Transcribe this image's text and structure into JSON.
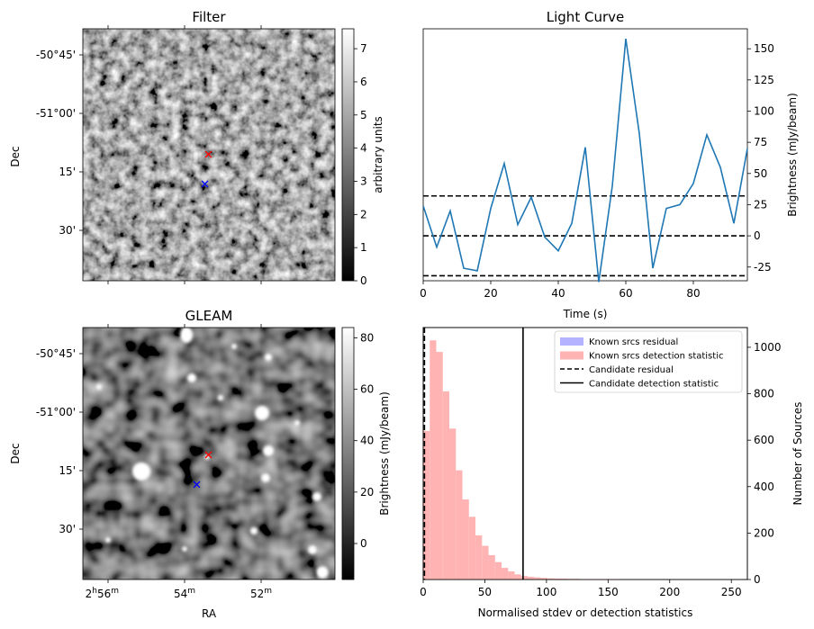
{
  "figure": {
    "size_note": "four-panel transient candidate figure"
  },
  "chart_data": [
    {
      "id": "filter",
      "type": "heatmap",
      "title": "Filter",
      "xlabel": "",
      "ylabel": "Dec",
      "yticks": [
        "-50°45'",
        "-51°00'",
        "15'",
        "30'"
      ],
      "colorbar": {
        "label": "arbitrary units",
        "ticks": [
          0,
          1,
          2,
          3,
          4,
          5,
          6,
          7
        ],
        "range": [
          0,
          7.6
        ]
      },
      "markers": [
        {
          "name": "red-cross",
          "color": "#ff0000"
        },
        {
          "name": "blue-cross",
          "color": "#0000ff"
        }
      ]
    },
    {
      "id": "light-curve",
      "type": "line",
      "title": "Light Curve",
      "xlabel": "Time (s)",
      "ylabel": "Brightness (mJy/beam)",
      "xlim": [
        0,
        96
      ],
      "ylim": [
        -36,
        166
      ],
      "xticks": [
        0,
        20,
        40,
        60,
        80
      ],
      "yticks": [
        -25,
        0,
        25,
        50,
        75,
        100,
        125,
        150
      ],
      "color": "#1f77b4",
      "x": [
        0,
        4,
        8,
        12,
        16,
        20,
        24,
        28,
        32,
        36,
        40,
        44,
        48,
        52,
        56,
        60,
        64,
        68,
        72,
        76,
        80,
        84,
        88,
        92,
        96
      ],
      "y": [
        24,
        -9,
        20,
        -26,
        -28,
        22,
        58,
        9,
        31,
        -1,
        -12,
        10,
        71,
        -37,
        40,
        158,
        82,
        -26,
        22,
        25,
        42,
        81,
        55,
        10,
        70
      ],
      "hlines": [
        32,
        0,
        -32
      ],
      "hline_style": "dashed"
    },
    {
      "id": "gleam",
      "type": "heatmap",
      "title": "GLEAM",
      "xlabel": "RA",
      "ylabel": "Dec",
      "yticks": [
        "-50°45'",
        "-51°00'",
        "15'",
        "30'"
      ],
      "xticks": [
        {
          "h": "2",
          "m": "56"
        },
        {
          "h": "",
          "m": "54"
        },
        {
          "h": "",
          "m": "52"
        }
      ],
      "colorbar": {
        "label": "Brightness (mJy/beam)",
        "ticks": [
          0,
          20,
          40,
          60,
          80
        ],
        "range": [
          -14,
          84
        ]
      },
      "markers": [
        {
          "name": "red-cross",
          "color": "#ff0000"
        },
        {
          "name": "blue-cross",
          "color": "#0000ff"
        }
      ]
    },
    {
      "id": "histogram",
      "type": "bar",
      "title": "",
      "xlabel": "Normalised stdev or detection statistics",
      "ylabel": "Number of Sources",
      "xlim": [
        0,
        263
      ],
      "ylim": [
        0,
        1085
      ],
      "xticks": [
        0,
        50,
        100,
        150,
        200,
        250
      ],
      "yticks": [
        0,
        200,
        400,
        600,
        800,
        1000
      ],
      "bin_width": 5.3,
      "bin_start": 0,
      "series": [
        {
          "name": "Known srcs detection statistic",
          "color": "#ffb3b3",
          "values": [
            640,
            1030,
            980,
            810,
            650,
            470,
            345,
            270,
            190,
            145,
            105,
            75,
            50,
            35,
            22,
            15,
            12,
            9,
            7,
            5,
            4,
            4,
            3,
            3,
            2,
            2,
            2,
            2,
            2,
            2,
            1,
            1,
            1,
            1,
            1,
            1,
            1,
            1,
            1,
            1,
            1,
            1,
            1,
            1,
            1,
            1,
            1,
            1,
            1
          ]
        }
      ],
      "vlines": [
        {
          "name": "Candidate residual",
          "x": 1,
          "style": "dashed"
        },
        {
          "name": "Candidate detection statistic",
          "x": 81,
          "style": "solid"
        }
      ],
      "legend": {
        "placement": "top-right",
        "entries": [
          {
            "label": "Known srcs residual",
            "kind": "patch",
            "color": "#b3b3ff"
          },
          {
            "label": "Known srcs detection statistic",
            "kind": "patch",
            "color": "#ffb3b3"
          },
          {
            "label": "Candidate residual",
            "kind": "dashed"
          },
          {
            "label": "Candidate detection statistic",
            "kind": "solid"
          }
        ]
      }
    }
  ]
}
